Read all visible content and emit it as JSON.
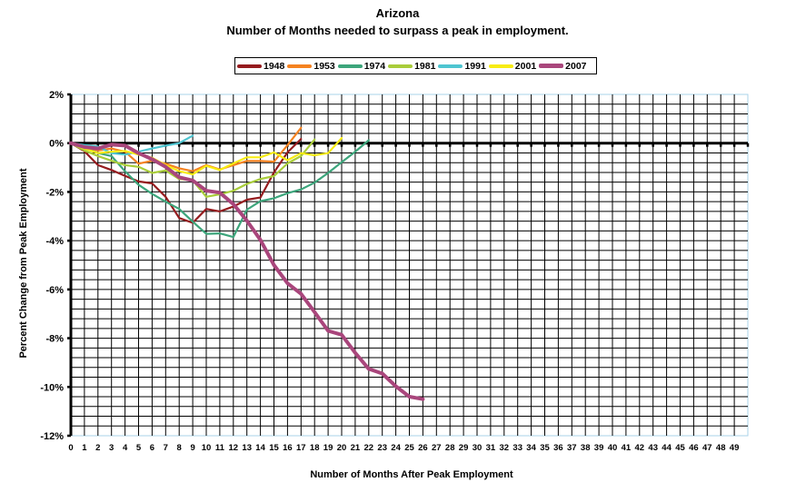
{
  "chart_data": {
    "type": "line",
    "title": "Arizona",
    "subtitle": "Number of Months needed to surpass a peak in employment.",
    "xlabel": "Number of Months After Peak Employment",
    "ylabel": "Percent Change from Peak Employment",
    "xlim": [
      0,
      50
    ],
    "ylim": [
      -12,
      2
    ],
    "y_ticks": [
      "2%",
      "0%",
      "-2%",
      "-4%",
      "-6%",
      "-8%",
      "-10%",
      "-12%"
    ],
    "x_ticks": [
      0,
      1,
      2,
      3,
      4,
      5,
      6,
      7,
      8,
      9,
      10,
      11,
      12,
      13,
      14,
      15,
      16,
      17,
      18,
      19,
      20,
      21,
      22,
      23,
      24,
      25,
      26,
      27,
      28,
      29,
      30,
      31,
      32,
      33,
      34,
      35,
      36,
      37,
      38,
      39,
      40,
      41,
      42,
      43,
      44,
      45,
      46,
      47,
      48,
      49
    ],
    "grid": true,
    "legend_position": "top",
    "series": [
      {
        "name": "1948",
        "color": "#951B1E",
        "width": 2.2,
        "values": [
          0,
          -0.33,
          -0.9,
          -1.1,
          -1.34,
          -1.57,
          -1.65,
          -2.2,
          -3.07,
          -3.27,
          -2.7,
          -2.8,
          -2.6,
          -2.32,
          -2.23,
          -1.2,
          -0.38,
          0.17
        ]
      },
      {
        "name": "1953",
        "color": "#F58220",
        "width": 2.2,
        "values": [
          0,
          -0.16,
          -0.3,
          -0.22,
          -0.35,
          -0.84,
          -0.72,
          -0.84,
          -1.03,
          -1.15,
          -0.9,
          -1.08,
          -0.9,
          -0.73,
          -0.73,
          -0.76,
          -0.08,
          0.63
        ]
      },
      {
        "name": "1974",
        "color": "#3CA57B",
        "width": 2.2,
        "values": [
          0,
          -0.2,
          -0.4,
          -0.53,
          -1.15,
          -1.71,
          -2.08,
          -2.4,
          -2.7,
          -3.22,
          -3.72,
          -3.7,
          -3.85,
          -2.73,
          -2.38,
          -2.26,
          -2.05,
          -1.9,
          -1.62,
          -1.22,
          -0.78,
          -0.35,
          0.12
        ]
      },
      {
        "name": "1981",
        "color": "#A9CD3A",
        "width": 2.2,
        "values": [
          0,
          -0.3,
          -0.53,
          -0.72,
          -0.9,
          -0.97,
          -1.22,
          -1.12,
          -1.47,
          -1.53,
          -2.2,
          -2.1,
          -1.95,
          -1.67,
          -1.47,
          -1.35,
          -0.83,
          -0.53,
          0.15
        ]
      },
      {
        "name": "1991",
        "color": "#4EC5D1",
        "width": 2.2,
        "values": [
          0,
          -0.08,
          -0.14,
          -0.41,
          -0.47,
          -0.35,
          -0.22,
          -0.1,
          0.0,
          0.31
        ]
      },
      {
        "name": "2001",
        "color": "#F7EC13",
        "width": 2.2,
        "values": [
          0,
          -0.22,
          -0.41,
          -0.35,
          -0.32,
          -0.47,
          -0.6,
          -0.9,
          -1.15,
          -1.28,
          -0.93,
          -1.1,
          -0.83,
          -0.58,
          -0.58,
          -0.38,
          -0.7,
          -0.41,
          -0.5,
          -0.41,
          0.21
        ]
      },
      {
        "name": "2007",
        "color": "#A9467C",
        "width": 4,
        "values": [
          0,
          -0.16,
          -0.22,
          -0.06,
          -0.1,
          -0.41,
          -0.66,
          -0.97,
          -1.4,
          -1.53,
          -1.95,
          -2.03,
          -2.5,
          -3.18,
          -3.97,
          -5.0,
          -5.75,
          -6.18,
          -6.93,
          -7.7,
          -7.86,
          -8.6,
          -9.26,
          -9.45,
          -9.97,
          -10.4,
          -10.5
        ]
      }
    ]
  }
}
